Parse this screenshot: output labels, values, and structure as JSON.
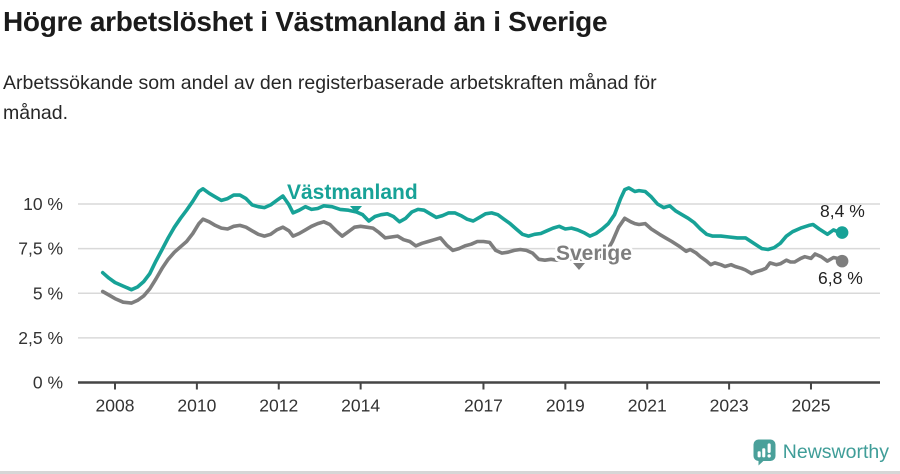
{
  "header": {
    "title": "Högre arbetslöshet i Västmanland än i Sverige",
    "subtitle_lines": [
      "Arbetssökande som andel av den registerbaserade arbetskraften månad för",
      "månad."
    ]
  },
  "chart_data": {
    "type": "line",
    "title": "Högre arbetslöshet i Västmanland än i Sverige",
    "ylabel": "",
    "xlabel": "",
    "grid": true,
    "ylim": [
      0,
      12.4
    ],
    "xlim": [
      2007.6,
      2026.1
    ],
    "y_ticks": [
      {
        "v": 0,
        "label": "0 %"
      },
      {
        "v": 2.5,
        "label": "2,5 %"
      },
      {
        "v": 5,
        "label": "5 %"
      },
      {
        "v": 7.5,
        "label": "7,5 %"
      },
      {
        "v": 10,
        "label": "10 %"
      }
    ],
    "x_ticks": [
      {
        "v": 2008,
        "label": "2008"
      },
      {
        "v": 2010,
        "label": "2010"
      },
      {
        "v": 2012,
        "label": "2012"
      },
      {
        "v": 2014,
        "label": "2014"
      },
      {
        "v": 2017,
        "label": "2017"
      },
      {
        "v": 2019,
        "label": "2019"
      },
      {
        "v": 2021,
        "label": "2021"
      },
      {
        "v": 2023,
        "label": "2023"
      },
      {
        "v": 2025,
        "label": "2025"
      }
    ],
    "series": [
      {
        "name": "Västmanland",
        "color": "#17a297",
        "end_label": "8,4 %",
        "x": [
          2007.7,
          2007.85,
          2008.0,
          2008.2,
          2008.4,
          2008.55,
          2008.7,
          2008.85,
          2009.0,
          2009.15,
          2009.3,
          2009.45,
          2009.6,
          2009.75,
          2009.9,
          2010.05,
          2010.15,
          2010.3,
          2010.45,
          2010.6,
          2010.75,
          2010.9,
          2011.05,
          2011.2,
          2011.35,
          2011.5,
          2011.65,
          2011.8,
          2011.95,
          2012.1,
          2012.25,
          2012.35,
          2012.5,
          2012.65,
          2012.8,
          2012.95,
          2013.1,
          2013.3,
          2013.5,
          2013.7,
          2013.9,
          2014.05,
          2014.2,
          2014.35,
          2014.5,
          2014.65,
          2014.8,
          2014.95,
          2015.1,
          2015.25,
          2015.4,
          2015.55,
          2015.7,
          2015.85,
          2016.0,
          2016.15,
          2016.3,
          2016.45,
          2016.6,
          2016.75,
          2016.9,
          2017.05,
          2017.2,
          2017.35,
          2017.5,
          2017.65,
          2017.8,
          2017.95,
          2018.1,
          2018.25,
          2018.4,
          2018.55,
          2018.7,
          2018.85,
          2019.0,
          2019.15,
          2019.3,
          2019.45,
          2019.6,
          2019.75,
          2019.9,
          2020.05,
          2020.2,
          2020.35,
          2020.45,
          2020.55,
          2020.7,
          2020.8,
          2020.95,
          2021.1,
          2021.25,
          2021.4,
          2021.55,
          2021.7,
          2021.85,
          2022.0,
          2022.15,
          2022.3,
          2022.45,
          2022.6,
          2022.8,
          2023.0,
          2023.2,
          2023.4,
          2023.6,
          2023.8,
          2023.95,
          2024.1,
          2024.25,
          2024.4,
          2024.55,
          2024.75,
          2024.95,
          2025.05,
          2025.2,
          2025.4,
          2025.55,
          2025.65,
          2025.76
        ],
        "values": [
          6.15,
          5.85,
          5.6,
          5.4,
          5.2,
          5.35,
          5.65,
          6.1,
          6.8,
          7.45,
          8.1,
          8.7,
          9.2,
          9.65,
          10.15,
          10.7,
          10.85,
          10.6,
          10.4,
          10.2,
          10.3,
          10.5,
          10.5,
          10.3,
          9.95,
          9.85,
          9.8,
          9.95,
          10.2,
          10.45,
          9.95,
          9.5,
          9.65,
          9.85,
          9.7,
          9.75,
          9.9,
          9.85,
          9.7,
          9.65,
          9.55,
          9.4,
          9.05,
          9.3,
          9.4,
          9.45,
          9.3,
          9.0,
          9.2,
          9.55,
          9.7,
          9.65,
          9.45,
          9.25,
          9.35,
          9.5,
          9.5,
          9.35,
          9.15,
          9.05,
          9.25,
          9.45,
          9.5,
          9.4,
          9.15,
          8.9,
          8.6,
          8.3,
          8.2,
          8.3,
          8.35,
          8.5,
          8.65,
          8.75,
          8.6,
          8.65,
          8.55,
          8.4,
          8.2,
          8.35,
          8.6,
          8.9,
          9.4,
          10.3,
          10.8,
          10.9,
          10.7,
          10.75,
          10.7,
          10.4,
          10.0,
          9.8,
          9.9,
          9.6,
          9.4,
          9.2,
          8.95,
          8.6,
          8.3,
          8.2,
          8.2,
          8.15,
          8.1,
          8.1,
          7.8,
          7.5,
          7.45,
          7.55,
          7.8,
          8.2,
          8.45,
          8.65,
          8.8,
          8.85,
          8.6,
          8.3,
          8.55,
          8.45,
          8.4
        ]
      },
      {
        "name": "Sverige",
        "color": "#7e7e7e",
        "end_label": "6,8 %",
        "x": [
          2007.7,
          2007.85,
          2008.0,
          2008.2,
          2008.4,
          2008.55,
          2008.7,
          2008.85,
          2009.0,
          2009.15,
          2009.3,
          2009.45,
          2009.6,
          2009.75,
          2009.9,
          2010.05,
          2010.15,
          2010.3,
          2010.45,
          2010.6,
          2010.75,
          2010.9,
          2011.05,
          2011.2,
          2011.35,
          2011.5,
          2011.65,
          2011.8,
          2011.95,
          2012.1,
          2012.25,
          2012.35,
          2012.5,
          2012.65,
          2012.8,
          2012.95,
          2013.1,
          2013.25,
          2013.4,
          2013.55,
          2013.7,
          2013.85,
          2014.0,
          2014.15,
          2014.3,
          2014.45,
          2014.6,
          2014.75,
          2014.9,
          2015.05,
          2015.2,
          2015.35,
          2015.5,
          2015.65,
          2015.8,
          2015.95,
          2016.1,
          2016.25,
          2016.4,
          2016.55,
          2016.7,
          2016.85,
          2017.0,
          2017.15,
          2017.3,
          2017.45,
          2017.6,
          2017.75,
          2017.9,
          2018.05,
          2018.2,
          2018.35,
          2018.5,
          2018.65,
          2018.8,
          2019.0,
          2019.2,
          2019.4,
          2019.6,
          2019.8,
          2020.0,
          2020.15,
          2020.3,
          2020.45,
          2020.6,
          2020.7,
          2020.8,
          2020.95,
          2021.1,
          2021.3,
          2021.45,
          2021.6,
          2021.8,
          2021.95,
          2022.05,
          2022.2,
          2022.3,
          2022.45,
          2022.55,
          2022.65,
          2022.8,
          2022.9,
          2023.05,
          2023.15,
          2023.3,
          2023.4,
          2023.55,
          2023.65,
          2023.8,
          2023.9,
          2024.0,
          2024.15,
          2024.25,
          2024.4,
          2024.5,
          2024.6,
          2024.75,
          2024.85,
          2025.0,
          2025.1,
          2025.25,
          2025.4,
          2025.55,
          2025.65,
          2025.76
        ],
        "values": [
          5.1,
          4.9,
          4.7,
          4.5,
          4.45,
          4.6,
          4.85,
          5.25,
          5.8,
          6.4,
          6.9,
          7.3,
          7.6,
          7.9,
          8.35,
          8.9,
          9.15,
          9.0,
          8.8,
          8.65,
          8.6,
          8.75,
          8.8,
          8.7,
          8.5,
          8.3,
          8.2,
          8.3,
          8.55,
          8.7,
          8.5,
          8.2,
          8.35,
          8.55,
          8.75,
          8.9,
          9.0,
          8.85,
          8.5,
          8.2,
          8.45,
          8.7,
          8.75,
          8.7,
          8.65,
          8.4,
          8.1,
          8.15,
          8.2,
          8.0,
          7.9,
          7.65,
          7.8,
          7.9,
          8.0,
          8.1,
          7.7,
          7.4,
          7.5,
          7.65,
          7.75,
          7.9,
          7.9,
          7.85,
          7.4,
          7.25,
          7.3,
          7.4,
          7.45,
          7.4,
          7.25,
          6.9,
          6.85,
          6.9,
          6.85,
          6.9,
          6.95,
          6.9,
          6.95,
          7.0,
          7.3,
          7.9,
          8.7,
          9.2,
          9.0,
          8.9,
          8.85,
          8.9,
          8.6,
          8.3,
          8.1,
          7.9,
          7.6,
          7.35,
          7.45,
          7.25,
          7.05,
          6.8,
          6.6,
          6.7,
          6.6,
          6.5,
          6.6,
          6.5,
          6.4,
          6.3,
          6.1,
          6.2,
          6.3,
          6.4,
          6.7,
          6.6,
          6.65,
          6.85,
          6.75,
          6.75,
          6.95,
          7.05,
          6.95,
          7.2,
          7.05,
          6.8,
          7.0,
          6.95,
          6.8
        ]
      }
    ],
    "legend_position": "inline-labels"
  },
  "colors": {
    "accent_teal": "#17a297",
    "line_gray": "#7e7e7e",
    "grid": "#d9d9d9",
    "axis": "#454545",
    "brand": "#3f9d98"
  },
  "footer": {
    "brand": "Newsworthy",
    "logo_icon": "bar-chart-speech-bubble"
  }
}
